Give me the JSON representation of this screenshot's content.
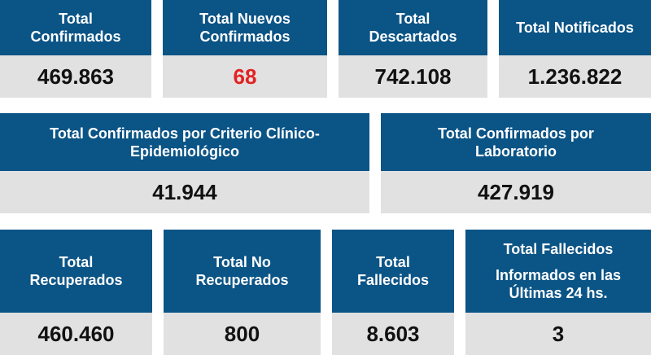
{
  "cards": [
    {
      "title_lines": [
        "Total",
        "Confirmados"
      ],
      "value": "469.863"
    },
    {
      "title_lines": [
        "Total Nuevos",
        "Confirmados"
      ],
      "value": "68"
    },
    {
      "title_lines": [
        "Total",
        "Descartados"
      ],
      "value": "742.108"
    },
    {
      "title_lines": [
        "Total Notificados"
      ],
      "value": "1.236.822"
    },
    {
      "title_lines": [
        "Total Confirmados por Criterio Clínico-",
        "Epidemiológico"
      ],
      "value": "41.944"
    },
    {
      "title_lines": [
        "Total Confirmados por",
        "Laboratorio"
      ],
      "value": "427.919"
    },
    {
      "title_lines": [
        "Total",
        "Recuperados"
      ],
      "value": "460.460"
    },
    {
      "title_lines": [
        "Total No",
        "Recuperados"
      ],
      "value": "800"
    },
    {
      "title_lines": [
        "Total",
        "Fallecidos"
      ],
      "value": "8.603"
    },
    {
      "title_lines": [
        "Total Fallecidos",
        "Informados en las",
        "Últimas 24 hs."
      ],
      "value": "3"
    }
  ],
  "colors": {
    "header_bg": "#0b5486",
    "value_bg": "#e1e1e1",
    "highlight_value": "#e32222"
  }
}
